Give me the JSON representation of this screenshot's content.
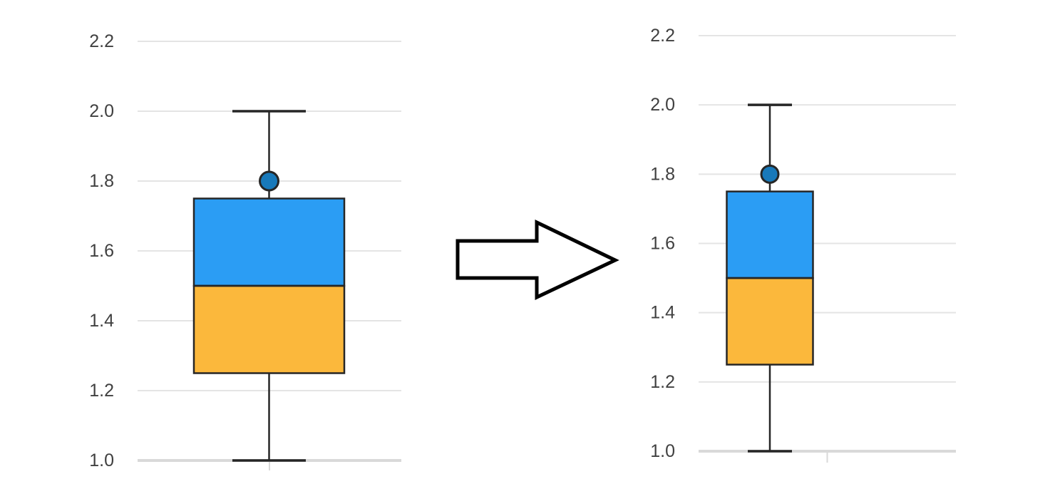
{
  "page": {
    "background": "#ffffff"
  },
  "arrow": {
    "description": "block-arrow-pointing-right",
    "fill": "#ffffff",
    "stroke": "#000000"
  },
  "chart_data": [
    {
      "id": "left-boxplot",
      "type": "boxplot",
      "title": "",
      "xlabel": "",
      "ylabel": "",
      "orientation": "vertical",
      "categories": [
        ""
      ],
      "series": [
        {
          "name": "box",
          "min": 1.0,
          "q1": 1.25,
          "median": 1.5,
          "q3": 1.75,
          "max": 2.0,
          "points": [
            1.8
          ]
        }
      ],
      "ylim": [
        1.0,
        2.2
      ],
      "yticks": [
        1.0,
        1.2,
        1.4,
        1.6,
        1.8,
        2.0,
        2.2
      ],
      "ytick_labels": [
        "1.0",
        "1.2",
        "1.4",
        "1.6",
        "1.8",
        "2.0",
        "2.2"
      ],
      "grid": true,
      "legend": false,
      "colors": {
        "upper_box": "#2B9DF4",
        "lower_box": "#FBB83C",
        "outline": "#262626",
        "marker_fill": "#1879BA",
        "grid": "#E4E4E4",
        "axis": "#D9D9D9",
        "label": "#404040"
      }
    },
    {
      "id": "right-boxplot",
      "type": "boxplot",
      "title": "",
      "xlabel": "",
      "ylabel": "",
      "orientation": "vertical",
      "categories": [
        ""
      ],
      "series": [
        {
          "name": "box",
          "min": 1.0,
          "q1": 1.25,
          "median": 1.5,
          "q3": 1.75,
          "max": 2.0,
          "points": [
            1.8
          ]
        }
      ],
      "ylim": [
        1.0,
        2.2
      ],
      "yticks": [
        1.0,
        1.2,
        1.4,
        1.6,
        1.8,
        2.0,
        2.2
      ],
      "ytick_labels": [
        "1.0",
        "1.2",
        "1.4",
        "1.6",
        "1.8",
        "2.0",
        "2.2"
      ],
      "grid": true,
      "legend": false,
      "colors": {
        "upper_box": "#2B9DF4",
        "lower_box": "#FBB83C",
        "outline": "#262626",
        "marker_fill": "#1879BA",
        "grid": "#E4E4E4",
        "axis": "#D9D9D9",
        "label": "#404040"
      }
    }
  ]
}
